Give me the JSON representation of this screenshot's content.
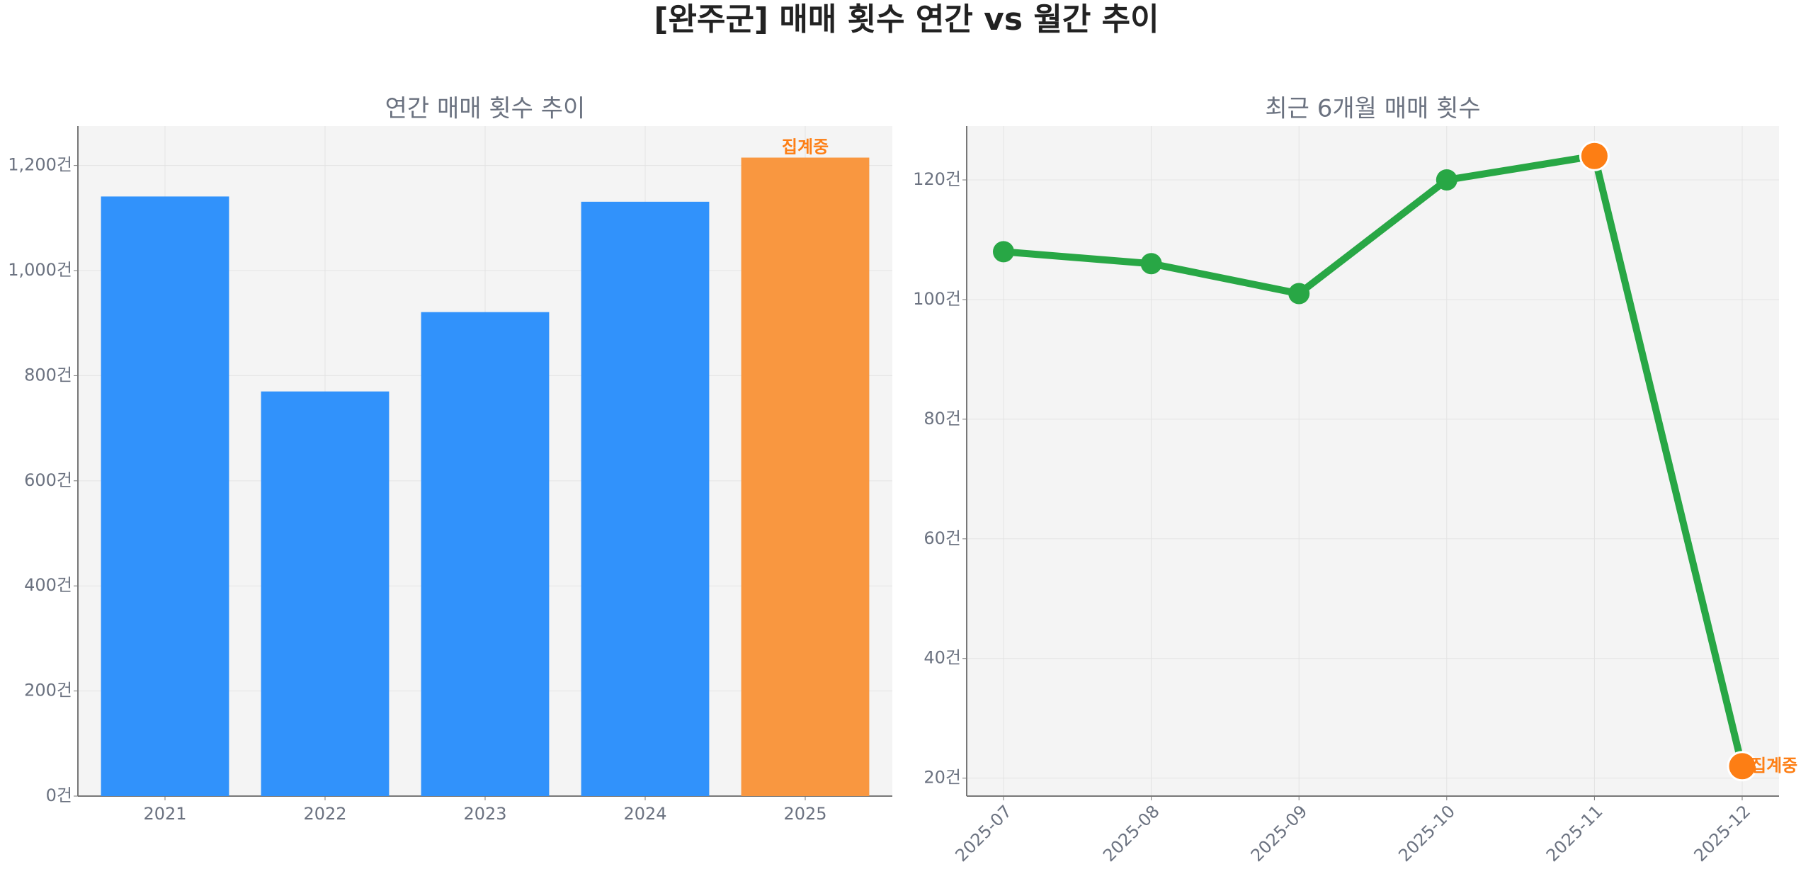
{
  "title": "[완주군] 매매 횟수 연간 vs 월간 추이",
  "chart_data": [
    {
      "type": "bar",
      "title": "연간 매매 횟수 추이",
      "categories": [
        "2021",
        "2022",
        "2023",
        "2024",
        "2025"
      ],
      "values": [
        1141,
        770,
        921,
        1131,
        1215
      ],
      "colors": [
        "#3192fb",
        "#3192fb",
        "#3192fb",
        "#3192fb",
        "#f99740"
      ],
      "ylim": [
        0,
        1275
      ],
      "yticks": [
        {
          "value": 0,
          "label": "0건"
        },
        {
          "value": 200,
          "label": "200건"
        },
        {
          "value": 400,
          "label": "400건"
        },
        {
          "value": 600,
          "label": "600건"
        },
        {
          "value": 800,
          "label": "800건"
        },
        {
          "value": 1000,
          "label": "1,000건"
        },
        {
          "value": 1200,
          "label": "1,200건"
        }
      ],
      "grid": true,
      "annotations": [
        {
          "text": "집계중",
          "x": "2025",
          "color": "#fd7e14"
        }
      ]
    },
    {
      "type": "line",
      "title": "최근 6개월 매매 횟수",
      "categories": [
        "2025-07",
        "2025-08",
        "2025-09",
        "2025-10",
        "2025-11",
        "2025-12"
      ],
      "values": [
        108,
        106,
        101,
        120,
        124,
        22
      ],
      "color": "#28a745",
      "marker_colors": [
        "#28a745",
        "#28a745",
        "#28a745",
        "#28a745",
        "#fd7e14",
        "#fd7e14"
      ],
      "ylim": [
        17,
        129
      ],
      "yticks": [
        {
          "value": 20,
          "label": "20건"
        },
        {
          "value": 40,
          "label": "40건"
        },
        {
          "value": 60,
          "label": "60건"
        },
        {
          "value": 80,
          "label": "80건"
        },
        {
          "value": 100,
          "label": "100건"
        },
        {
          "value": 120,
          "label": "120건"
        }
      ],
      "grid": true,
      "annotations": [
        {
          "text": "집계중",
          "x": "2025-12",
          "color": "#fd7e14"
        }
      ]
    }
  ]
}
